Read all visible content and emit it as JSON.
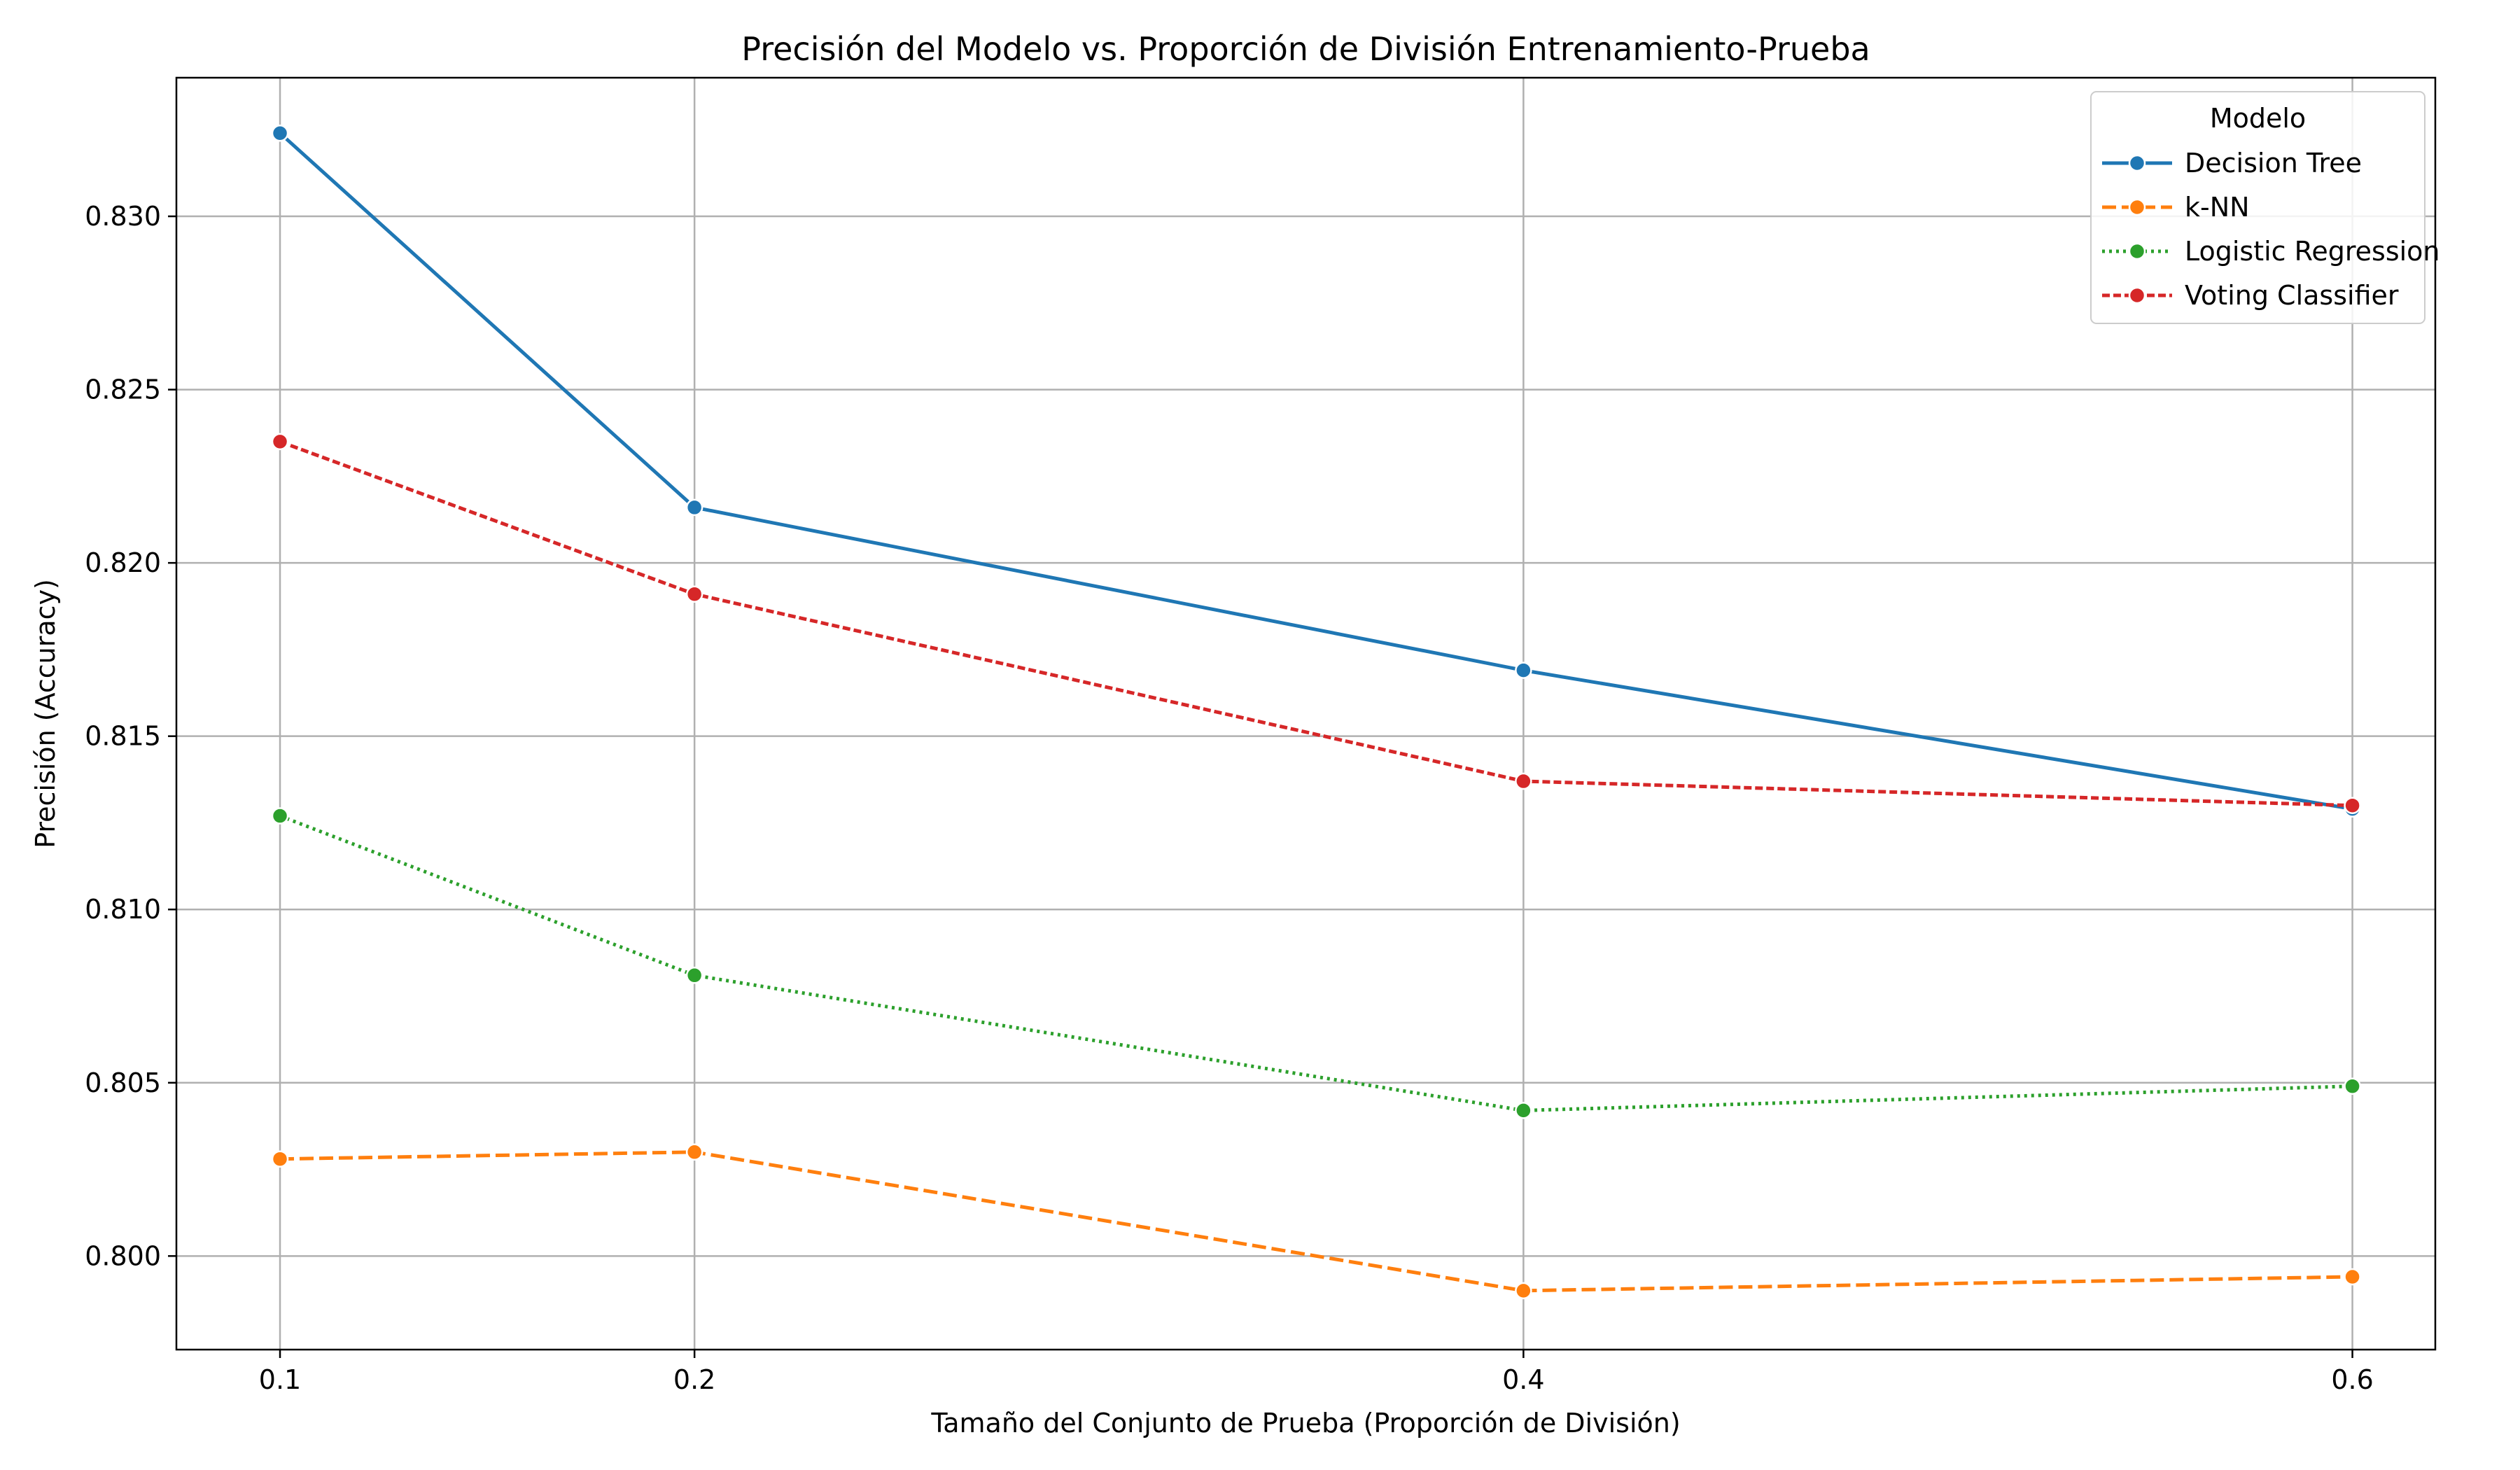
{
  "chart_data": {
    "type": "line",
    "title": "Precisión del Modelo vs. Proporción de División Entrenamiento-Prueba",
    "xlabel": "Tamaño del Conjunto de Prueba (Proporción de División)",
    "ylabel": "Precisión (Accuracy)",
    "x": [
      0.1,
      0.2,
      0.4,
      0.6
    ],
    "x_ticks": [
      "0.1",
      "0.2",
      "0.4",
      "0.6"
    ],
    "y_ticks": [
      "0.800",
      "0.805",
      "0.810",
      "0.815",
      "0.820",
      "0.825",
      "0.830"
    ],
    "y_tick_values": [
      0.8,
      0.805,
      0.81,
      0.815,
      0.82,
      0.825,
      0.83
    ],
    "xlim": [
      0.075,
      0.62
    ],
    "ylim": [
      0.7973,
      0.834
    ],
    "grid": true,
    "legend": {
      "title": "Modelo",
      "placement": "top-right"
    },
    "series": [
      {
        "name": "Decision Tree",
        "values": [
          0.8324,
          0.8216,
          0.8169,
          0.8129
        ],
        "color": "#1f77b4",
        "line_style": "solid"
      },
      {
        "name": "k-NN",
        "values": [
          0.8028,
          0.803,
          0.799,
          0.7994
        ],
        "color": "#ff7f0e",
        "line_style": "dashed"
      },
      {
        "name": "Logistic Regression",
        "values": [
          0.8127,
          0.8081,
          0.8042,
          0.8049
        ],
        "color": "#2ca02c",
        "line_style": "dotted"
      },
      {
        "name": "Voting Classifier",
        "values": [
          0.8235,
          0.8191,
          0.8137,
          0.813
        ],
        "color": "#d62728",
        "line_style": "dashdot-short"
      }
    ]
  }
}
